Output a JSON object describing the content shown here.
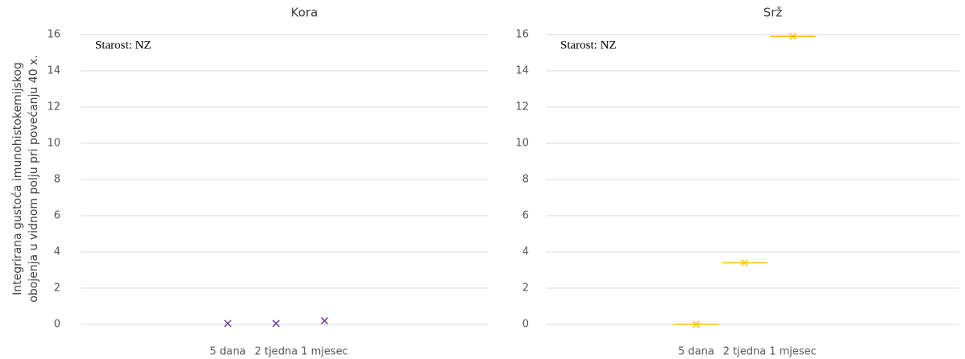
{
  "y_label": [
    "Integrirana gustoća imunohistokemijskog",
    "obojenja u vidnom polju pri povećanju 40 x."
  ],
  "chart_data": [
    {
      "type": "scatter",
      "title": "Kora",
      "annotation": "Starost: NZ",
      "categories": [
        "5 dana",
        "2 tjedna",
        "1 mjesec"
      ],
      "values": [
        0.05,
        0.05,
        0.2
      ],
      "color": "#7030a0",
      "ylim": [
        0,
        16
      ],
      "yticks": [
        0,
        2,
        4,
        6,
        8,
        10,
        12,
        14,
        16
      ],
      "grid": true
    },
    {
      "type": "box",
      "title": "Srž",
      "annotation": "Starost: NZ",
      "categories": [
        "5 dana",
        "2 tjedna",
        "1 mjesec"
      ],
      "values": [
        0,
        3.4,
        15.9
      ],
      "color": "#ffc000",
      "ylim": [
        0,
        16
      ],
      "yticks": [
        0,
        2,
        4,
        6,
        8,
        10,
        12,
        14,
        16
      ],
      "grid": true
    }
  ]
}
